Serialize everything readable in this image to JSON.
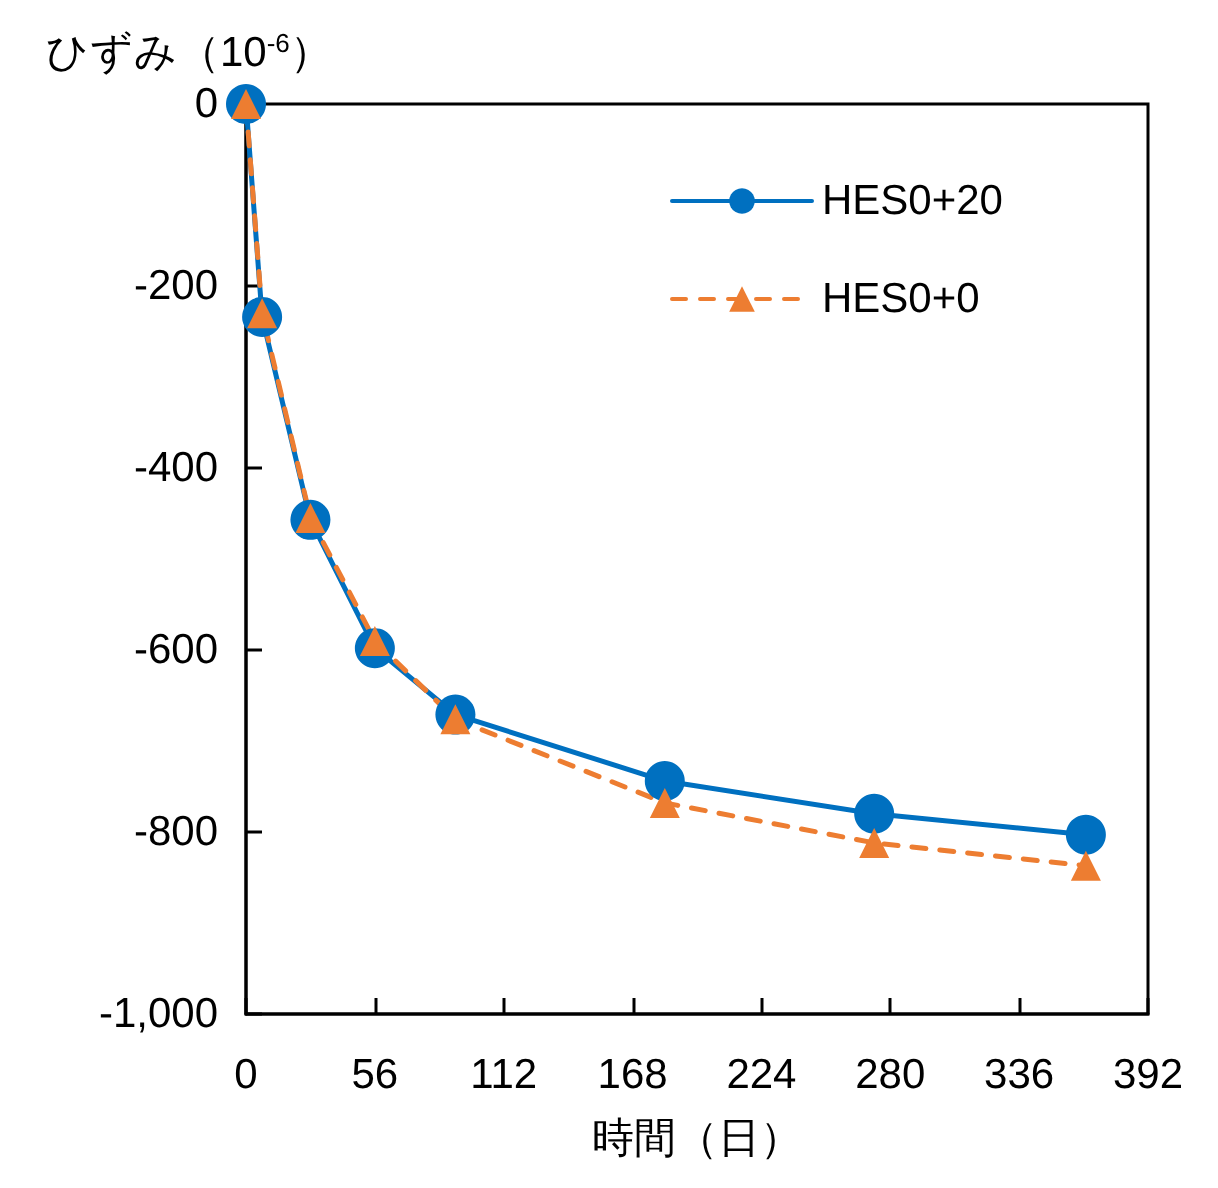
{
  "chart_data": {
    "type": "line",
    "ylabel": "ひずみ（10$^{-6}$）",
    "xlabel": "時間（日）",
    "xlim": [
      0,
      392
    ],
    "xticks": [
      0,
      56,
      112,
      168,
      224,
      280,
      336,
      392
    ],
    "ylim": [
      -1000,
      0
    ],
    "yticks": [
      {
        "value": -1000,
        "label": "-1,000"
      },
      -800,
      -600,
      -400,
      -200,
      0
    ],
    "grid": false,
    "legend": "top right",
    "series": [
      {
        "name": "HES0+20",
        "color": "#0070c0",
        "marker": "circle",
        "line_style": "solid",
        "x": [
          0,
          7,
          28,
          56,
          91,
          182,
          273,
          365
        ],
        "values": [
          0,
          -234,
          -457,
          -598,
          -671,
          -744,
          -780,
          -803
        ]
      },
      {
        "name": "HES0+0",
        "color": "#ed7d31",
        "marker": "triangle",
        "line_style": "dashed",
        "x": [
          0,
          7,
          28,
          56,
          91,
          182,
          273,
          365
        ],
        "values": [
          0,
          -230,
          -455,
          -590,
          -676,
          -768,
          -812,
          -837
        ]
      }
    ]
  }
}
